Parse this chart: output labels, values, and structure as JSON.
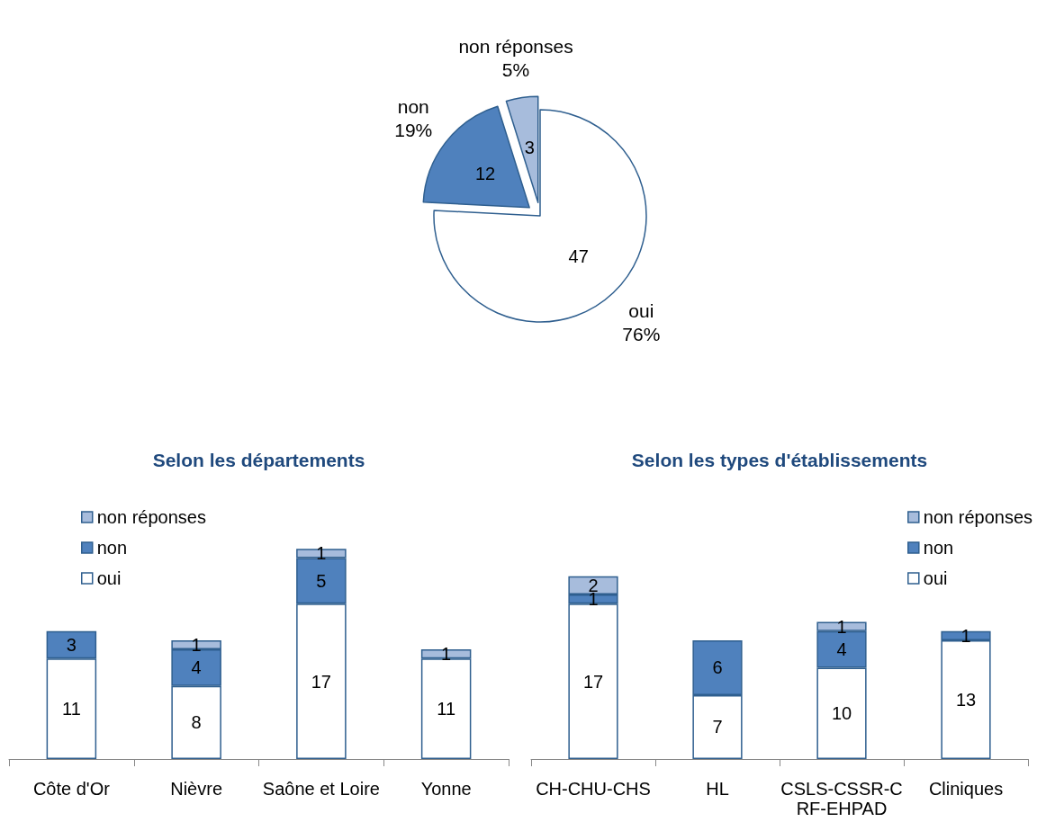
{
  "chart_data": [
    {
      "type": "pie",
      "categories": [
        "oui",
        "non",
        "non réponses"
      ],
      "values": [
        47,
        12,
        3
      ],
      "colors": [
        "#ffffff",
        "#4f81bd",
        "#a7bcdc"
      ],
      "data_labels": true,
      "annotations": [
        "76%",
        "19%",
        "5%"
      ]
    },
    {
      "type": "bar",
      "title": "Selon les départements",
      "categories": [
        "Côte d'Or",
        "Nièvre",
        "Saône et Loire",
        "Yonne"
      ],
      "stacked": true,
      "data_labels": true,
      "grid": false,
      "legend": "top left",
      "series": [
        {
          "name": "oui",
          "color": "#ffffff",
          "values": [
            11,
            8,
            17,
            11
          ]
        },
        {
          "name": "non",
          "color": "#4f81bd",
          "values": [
            3,
            4,
            5,
            null
          ]
        },
        {
          "name": "non réponses",
          "color": "#a7bcdc",
          "values": [
            null,
            1,
            1,
            1
          ]
        }
      ]
    },
    {
      "type": "bar",
      "title": "Selon les types d'établissements",
      "categories": [
        "CH-CHU-CHS",
        "HL",
        "CSLS-CSSR-CRF-EHPAD",
        "Cliniques"
      ],
      "stacked": true,
      "data_labels": true,
      "grid": false,
      "legend": "top right",
      "series": [
        {
          "name": "oui",
          "color": "#ffffff",
          "values": [
            17,
            7,
            10,
            13
          ]
        },
        {
          "name": "non",
          "color": "#4f81bd",
          "values": [
            1,
            6,
            4,
            1
          ]
        },
        {
          "name": "non réponses",
          "color": "#a7bcdc",
          "values": [
            2,
            null,
            1,
            null
          ]
        }
      ]
    }
  ]
}
